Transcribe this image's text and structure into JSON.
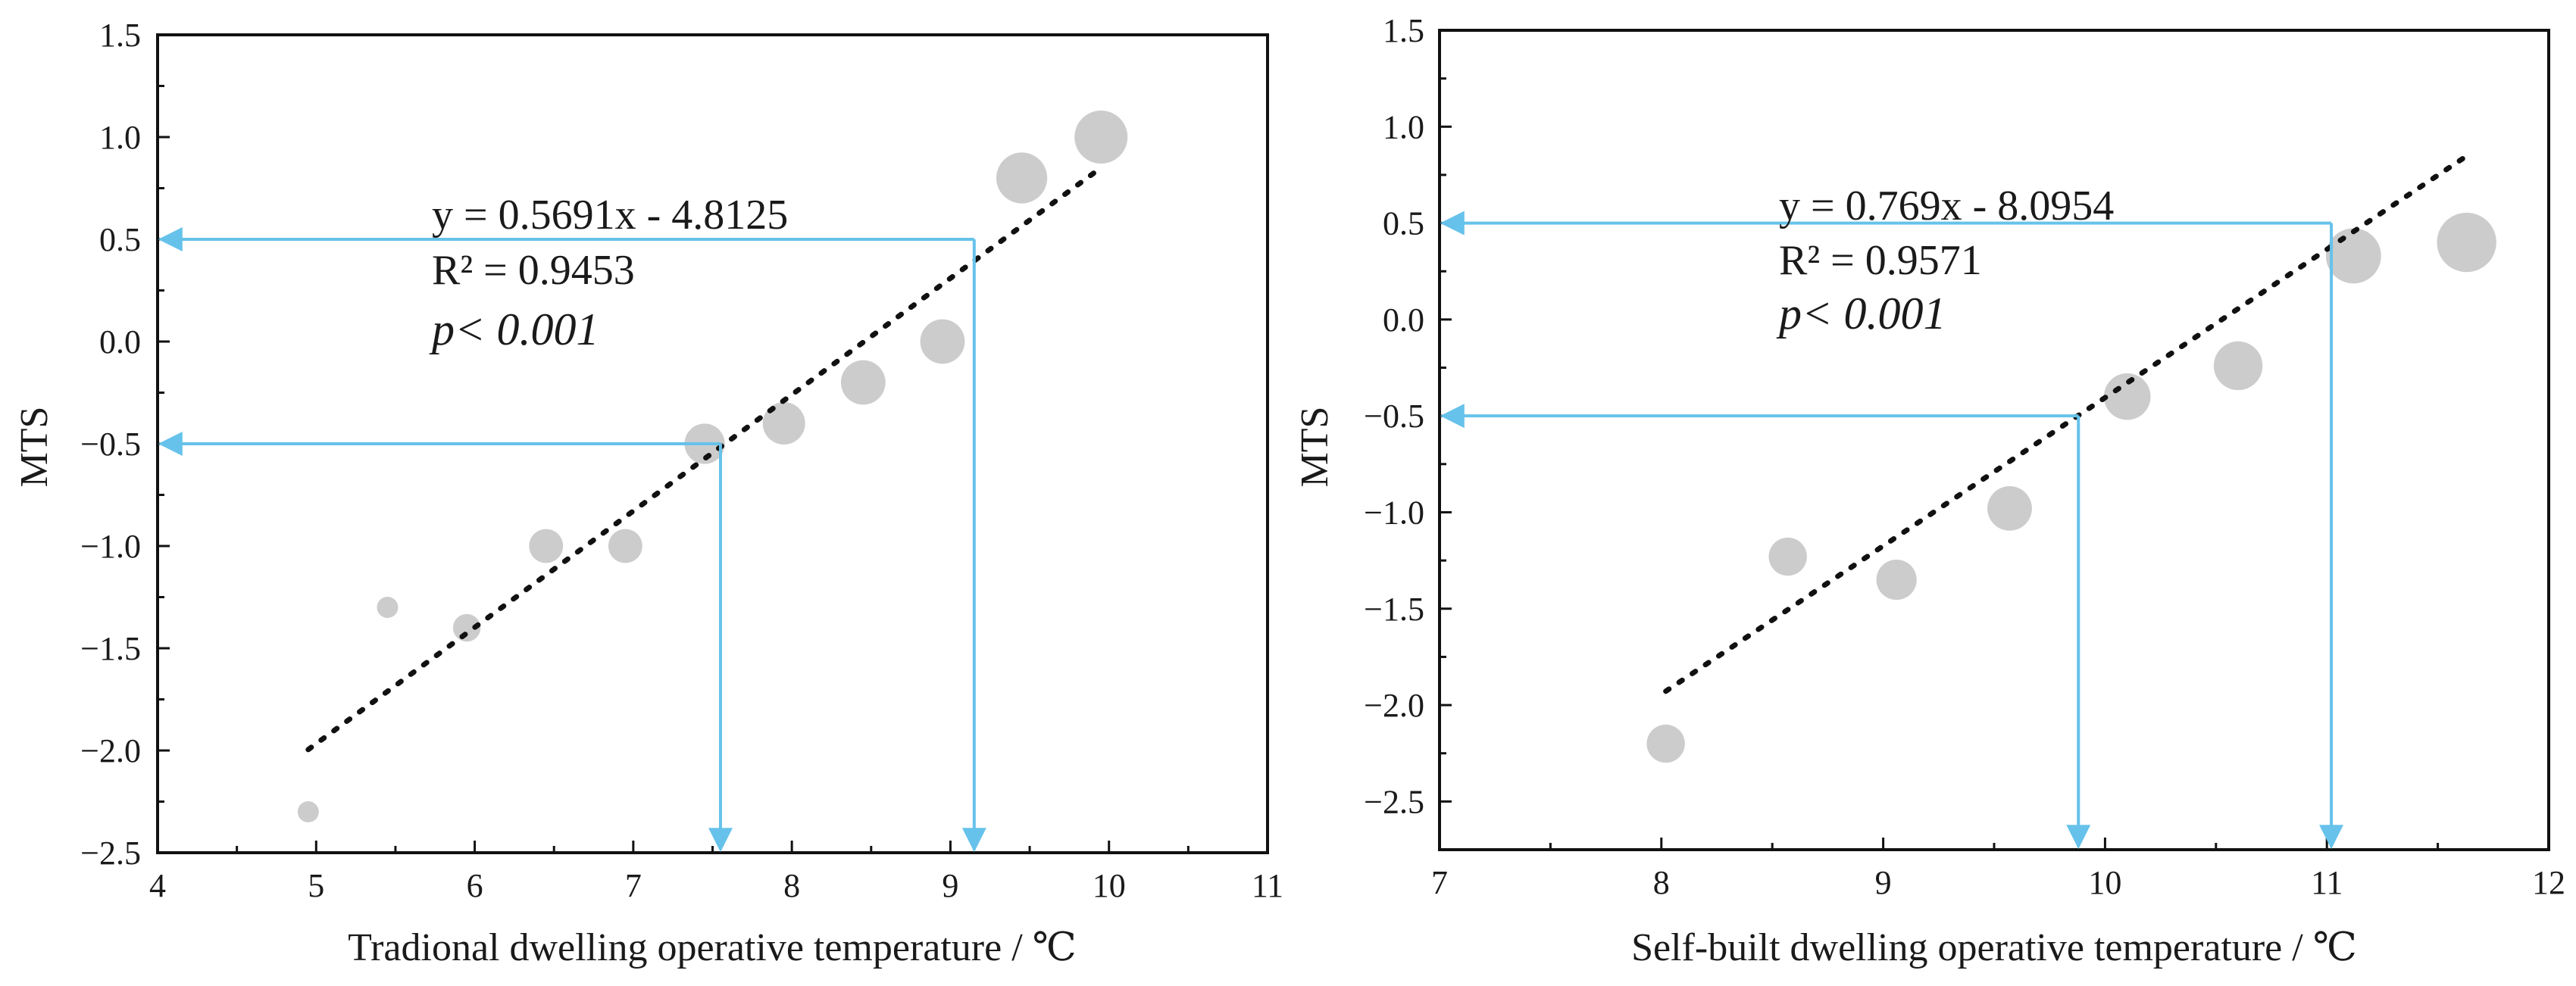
{
  "chart_data": [
    {
      "type": "scatter",
      "xlabel": "Tradional dwelling operative temperature / ℃",
      "ylabel": "MTS",
      "xlim": [
        4,
        11
      ],
      "ylim": [
        -2.5,
        1.5
      ],
      "xticks": [
        "4",
        "5",
        "6",
        "7",
        "8",
        "9",
        "10",
        "11"
      ],
      "yticks": [
        "−2.5",
        "−2.0",
        "−1.5",
        "−1.0",
        "−0.5",
        "0.0",
        "0.5",
        "1.0",
        "1.5"
      ],
      "points": [
        {
          "x": 4.95,
          "y": -2.3,
          "weight": 1
        },
        {
          "x": 5.45,
          "y": -1.3,
          "weight": 1
        },
        {
          "x": 5.95,
          "y": -1.4,
          "weight": 1.3
        },
        {
          "x": 6.45,
          "y": -1.0,
          "weight": 1.6
        },
        {
          "x": 6.95,
          "y": -1.0,
          "weight": 1.6
        },
        {
          "x": 7.45,
          "y": -0.5,
          "weight": 1.9
        },
        {
          "x": 7.95,
          "y": -0.4,
          "weight": 2
        },
        {
          "x": 8.45,
          "y": -0.2,
          "weight": 2.1
        },
        {
          "x": 8.95,
          "y": 0.0,
          "weight": 2.1
        },
        {
          "x": 9.45,
          "y": 0.8,
          "weight": 2.4
        },
        {
          "x": 9.95,
          "y": 1.0,
          "weight": 2.5
        }
      ],
      "trendline": {
        "slope": 0.5691,
        "intercept": -4.8125,
        "x_start": 4.95,
        "x_end": 9.95
      },
      "equation": "y = 0.5691x - 4.8125",
      "r2_label": "R² = 0.9453",
      "p_value": "p< 0.001",
      "guides": [
        {
          "mts": 0.5,
          "temperature": 9.15
        },
        {
          "mts": -0.5,
          "temperature": 7.55
        }
      ],
      "colors": {
        "marker": "#cccccc",
        "guide": "#66c2ea",
        "trend": "#111111"
      }
    },
    {
      "type": "scatter",
      "xlabel": "Self-built dwelling operative temperature / ℃",
      "ylabel": "MTS",
      "xlim": [
        7,
        12
      ],
      "ylim": [
        -2.75,
        1.5
      ],
      "xticks": [
        "7",
        "8",
        "9",
        "10",
        "11",
        "12"
      ],
      "yticks": [
        "−2.5",
        "−2.0",
        "−1.5",
        "−1.0",
        "−0.5",
        "0.0",
        "0.5",
        "1.0",
        "1.5"
      ],
      "points": [
        {
          "x": 8.02,
          "y": -2.2,
          "weight": 1.8
        },
        {
          "x": 8.57,
          "y": -1.23,
          "weight": 1.8
        },
        {
          "x": 9.06,
          "y": -1.35,
          "weight": 1.9
        },
        {
          "x": 9.57,
          "y": -0.98,
          "weight": 2.1
        },
        {
          "x": 10.1,
          "y": -0.4,
          "weight": 2.2
        },
        {
          "x": 10.6,
          "y": -0.24,
          "weight": 2.3
        },
        {
          "x": 11.12,
          "y": 0.33,
          "weight": 2.6
        },
        {
          "x": 11.63,
          "y": 0.4,
          "weight": 2.8
        }
      ],
      "trendline": {
        "slope": 0.769,
        "intercept": -8.0954,
        "x_start": 8.02,
        "x_end": 11.63
      },
      "equation": "y = 0.769x - 8.0954",
      "r2_label": "R² = 0.9571",
      "p_value": "p< 0.001",
      "guides": [
        {
          "mts": 0.5,
          "temperature": 11.02
        },
        {
          "mts": -0.5,
          "temperature": 9.88
        }
      ],
      "colors": {
        "marker": "#cccccc",
        "guide": "#66c2ea",
        "trend": "#111111"
      }
    }
  ]
}
